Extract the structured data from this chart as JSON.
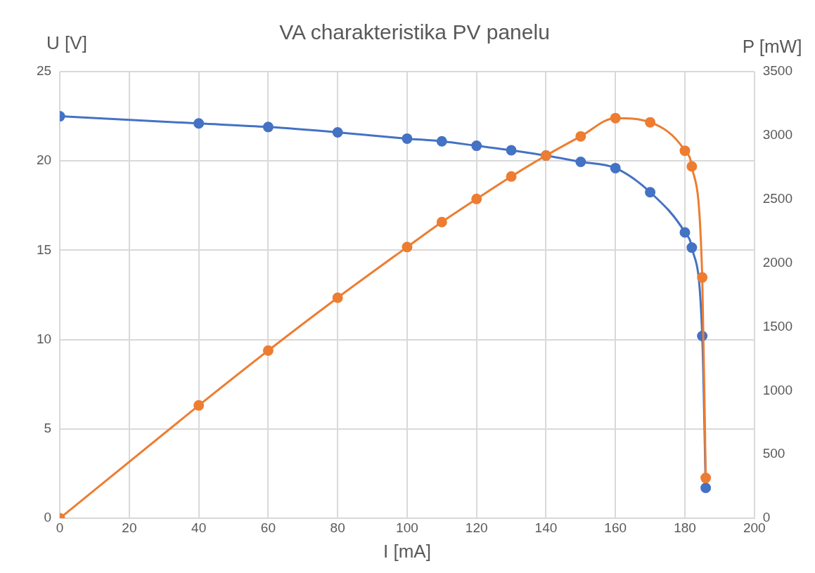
{
  "chart_data": {
    "type": "line",
    "title": "VA charakteristika PV panelu",
    "xlabel": "I [mA]",
    "ylabel": "U [V]",
    "y2label": "P [mW]",
    "x": [
      0,
      40,
      60,
      80,
      100,
      110,
      120,
      130,
      140,
      150,
      160,
      170,
      180,
      182,
      185,
      186
    ],
    "series": [
      {
        "color": "#4472c4",
        "values": [
          22.5,
          22.1,
          21.9,
          21.6,
          21.25,
          21.1,
          20.85,
          20.6,
          20.3,
          19.95,
          19.6,
          18.25,
          16.0,
          15.15,
          10.2,
          1.7
        ]
      },
      {
        "color": "#ed7d31",
        "axis": "y2",
        "values": [
          0,
          884,
          1314,
          1728,
          2125,
          2321,
          2502,
          2678,
          2842,
          2993,
          3136,
          3103,
          2880,
          2757,
          1887,
          316
        ]
      }
    ],
    "xlim": [
      0,
      200
    ],
    "xticks": [
      0,
      20,
      40,
      60,
      80,
      100,
      120,
      140,
      160,
      180,
      200
    ],
    "ylim": [
      0,
      25
    ],
    "yticks": [
      0,
      5,
      10,
      15,
      20,
      25
    ],
    "y2lim": [
      0,
      3500
    ],
    "y2ticks": [
      0,
      500,
      1000,
      1500,
      2000,
      2500,
      3000,
      3500
    ],
    "grid": true,
    "legend": false,
    "marker": "circle",
    "line_style": "solid"
  }
}
